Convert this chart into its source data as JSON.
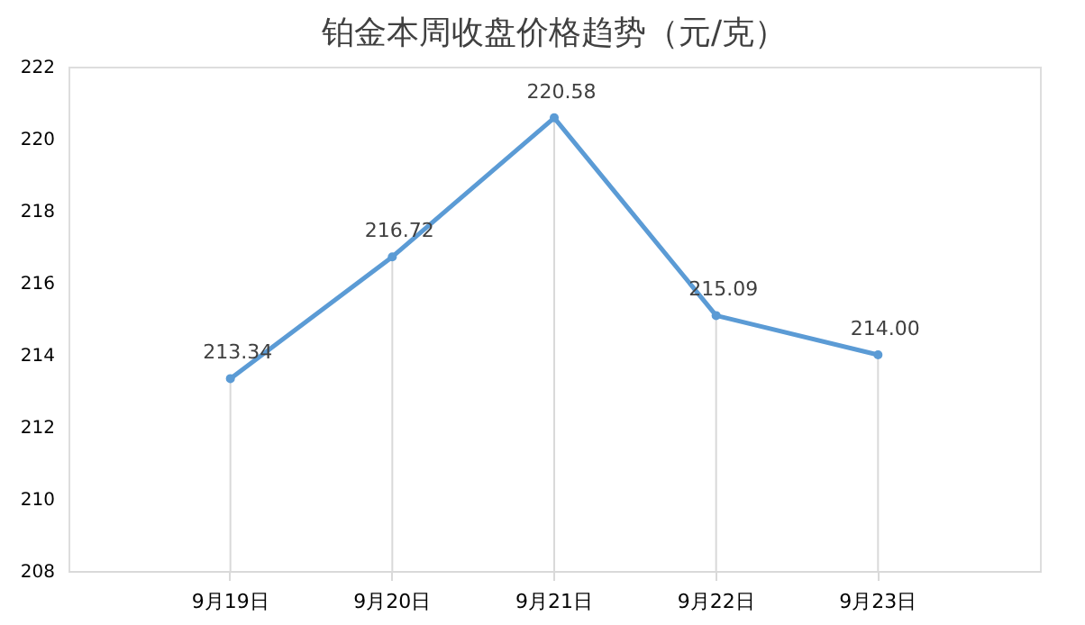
{
  "chart_data": {
    "type": "line",
    "title": "铂金本周收盘价格趋势（元/克）",
    "categories": [
      "9月19日",
      "9月20日",
      "9月21日",
      "9月22日",
      "9月23日"
    ],
    "series": [
      {
        "color": "#5b9bd5",
        "values": [
          213.34,
          216.72,
          220.58,
          215.09,
          214.0
        ]
      }
    ],
    "value_labels": [
      "213.34",
      "216.72",
      "220.58",
      "215.09",
      "214.00"
    ],
    "ylim": [
      208,
      222
    ],
    "yticks": [
      208,
      210,
      212,
      214,
      216,
      218,
      220,
      222
    ],
    "grid": "x",
    "marker": "circle",
    "line_style": "solid"
  }
}
